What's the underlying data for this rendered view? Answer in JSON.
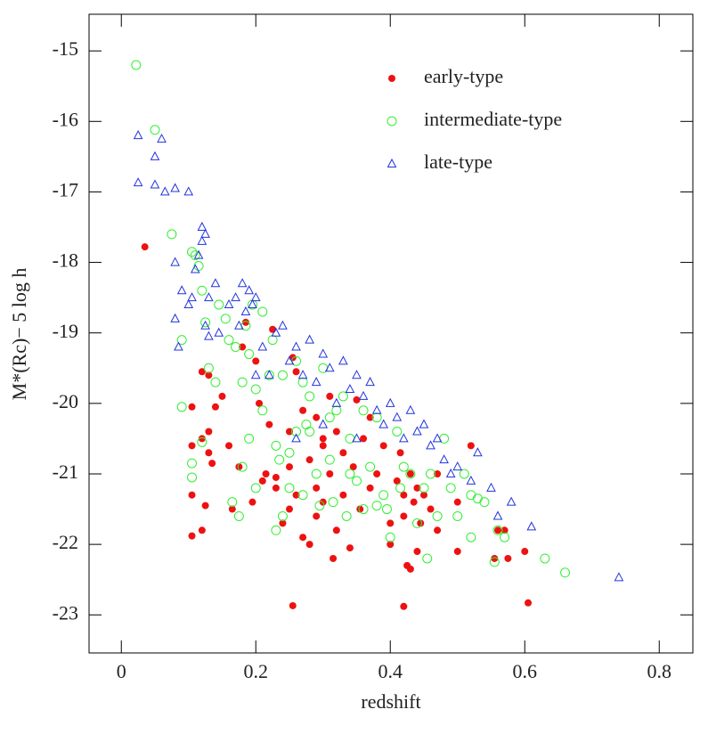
{
  "chart_data": {
    "type": "scatter",
    "x_label": "redshift",
    "y_label": "M*(Rc)− 5 log h",
    "xlim": [
      -0.048,
      0.85
    ],
    "ylim": [
      -23.54,
      -14.48
    ],
    "xticks": [
      0,
      0.2,
      0.4,
      0.6,
      0.8
    ],
    "yticks": [
      -15,
      -16,
      -17,
      -18,
      -19,
      -20,
      -21,
      -22,
      -23
    ],
    "legend": "upper right",
    "series": [
      {
        "name": "early-type",
        "color": "#ee1111",
        "marker": "filled-circle",
        "x": [
          0.035,
          0.255,
          0.42,
          0.605,
          0.105,
          0.12,
          0.105,
          0.105,
          0.12,
          0.13,
          0.13,
          0.135,
          0.12,
          0.13,
          0.14,
          0.125,
          0.105,
          0.15,
          0.16,
          0.165,
          0.175,
          0.18,
          0.185,
          0.2,
          0.22,
          0.225,
          0.23,
          0.23,
          0.24,
          0.25,
          0.25,
          0.255,
          0.26,
          0.27,
          0.27,
          0.28,
          0.28,
          0.29,
          0.29,
          0.3,
          0.3,
          0.31,
          0.31,
          0.315,
          0.32,
          0.32,
          0.33,
          0.33,
          0.34,
          0.345,
          0.35,
          0.355,
          0.36,
          0.37,
          0.37,
          0.38,
          0.39,
          0.4,
          0.4,
          0.41,
          0.415,
          0.42,
          0.42,
          0.425,
          0.43,
          0.43,
          0.435,
          0.44,
          0.44,
          0.445,
          0.45,
          0.46,
          0.47,
          0.47,
          0.5,
          0.5,
          0.52,
          0.555,
          0.56,
          0.57,
          0.575,
          0.6,
          0.195,
          0.205,
          0.21,
          0.215,
          0.25,
          0.26,
          0.29,
          0.3
        ],
        "y": [
          -17.78,
          -22.87,
          -22.88,
          -22.83,
          -21.88,
          -21.8,
          -21.3,
          -20.6,
          -20.5,
          -20.4,
          -20.7,
          -20.85,
          -19.55,
          -19.6,
          -20.05,
          -21.45,
          -20.05,
          -19.9,
          -20.6,
          -21.5,
          -20.9,
          -19.2,
          -18.85,
          -19.4,
          -20.3,
          -18.95,
          -21.2,
          -21.05,
          -21.7,
          -21.5,
          -20.4,
          -19.35,
          -19.55,
          -20.1,
          -21.9,
          -22.0,
          -20.8,
          -21.2,
          -21.6,
          -20.6,
          -21.4,
          -19.9,
          -21.0,
          -22.2,
          -20.4,
          -21.8,
          -21.3,
          -20.7,
          -22.05,
          -20.9,
          -19.95,
          -21.5,
          -20.5,
          -21.2,
          -20.2,
          -21.0,
          -20.6,
          -21.7,
          -22.0,
          -21.1,
          -20.7,
          -21.3,
          -21.6,
          -22.3,
          -22.35,
          -21.0,
          -21.4,
          -21.2,
          -22.1,
          -21.7,
          -21.3,
          -21.5,
          -21.0,
          -21.8,
          -22.1,
          -21.4,
          -20.6,
          -22.2,
          -21.8,
          -21.8,
          -22.2,
          -22.1,
          -21.4,
          -20.0,
          -21.1,
          -21.0,
          -20.9,
          -21.3,
          -20.2,
          -20.5
        ]
      },
      {
        "name": "intermediate-type",
        "color": "#33ee33",
        "marker": "open-circle",
        "x": [
          0.022,
          0.05,
          0.075,
          0.09,
          0.09,
          0.105,
          0.105,
          0.105,
          0.11,
          0.115,
          0.12,
          0.12,
          0.125,
          0.13,
          0.14,
          0.145,
          0.155,
          0.16,
          0.165,
          0.17,
          0.175,
          0.18,
          0.18,
          0.185,
          0.19,
          0.19,
          0.195,
          0.2,
          0.2,
          0.21,
          0.21,
          0.22,
          0.225,
          0.23,
          0.23,
          0.235,
          0.24,
          0.25,
          0.25,
          0.26,
          0.26,
          0.27,
          0.27,
          0.28,
          0.28,
          0.29,
          0.295,
          0.3,
          0.31,
          0.315,
          0.32,
          0.33,
          0.335,
          0.34,
          0.35,
          0.36,
          0.36,
          0.37,
          0.38,
          0.39,
          0.395,
          0.4,
          0.41,
          0.415,
          0.42,
          0.43,
          0.44,
          0.45,
          0.455,
          0.46,
          0.47,
          0.48,
          0.49,
          0.5,
          0.51,
          0.52,
          0.52,
          0.53,
          0.54,
          0.555,
          0.56,
          0.57,
          0.63,
          0.66,
          0.275,
          0.31,
          0.34,
          0.38,
          0.24
        ],
        "y": [
          -15.2,
          -16.12,
          -17.6,
          -20.05,
          -19.1,
          -20.85,
          -21.05,
          -17.85,
          -17.9,
          -18.05,
          -20.55,
          -18.4,
          -18.85,
          -19.5,
          -19.7,
          -18.6,
          -18.8,
          -19.1,
          -21.4,
          -19.2,
          -21.6,
          -20.9,
          -19.7,
          -18.9,
          -20.5,
          -19.3,
          -18.6,
          -21.2,
          -19.8,
          -20.1,
          -18.7,
          -19.6,
          -19.1,
          -21.8,
          -20.6,
          -20.8,
          -19.6,
          -21.2,
          -20.7,
          -19.4,
          -20.4,
          -21.3,
          -19.7,
          -19.9,
          -20.4,
          -21.0,
          -21.45,
          -19.5,
          -20.8,
          -21.4,
          -20.1,
          -19.9,
          -21.6,
          -20.5,
          -21.1,
          -20.1,
          -21.5,
          -20.9,
          -20.2,
          -21.3,
          -21.5,
          -21.9,
          -20.4,
          -21.2,
          -20.9,
          -21.0,
          -21.7,
          -21.2,
          -22.2,
          -21.0,
          -21.6,
          -20.5,
          -21.2,
          -21.6,
          -21.0,
          -21.9,
          -21.3,
          -21.35,
          -21.4,
          -22.25,
          -21.8,
          -21.9,
          -22.2,
          -22.4,
          -20.3,
          -20.2,
          -21.0,
          -21.45,
          -21.6
        ]
      },
      {
        "name": "late-type",
        "color": "#2233dd",
        "marker": "open-triangle",
        "x": [
          0.025,
          0.025,
          0.05,
          0.05,
          0.06,
          0.065,
          0.08,
          0.1,
          0.08,
          0.08,
          0.085,
          0.09,
          0.1,
          0.105,
          0.11,
          0.115,
          0.12,
          0.12,
          0.125,
          0.125,
          0.13,
          0.13,
          0.14,
          0.145,
          0.16,
          0.17,
          0.175,
          0.18,
          0.185,
          0.19,
          0.195,
          0.2,
          0.21,
          0.22,
          0.23,
          0.24,
          0.25,
          0.26,
          0.27,
          0.28,
          0.29,
          0.3,
          0.31,
          0.32,
          0.33,
          0.34,
          0.35,
          0.36,
          0.37,
          0.38,
          0.39,
          0.4,
          0.41,
          0.42,
          0.43,
          0.44,
          0.45,
          0.46,
          0.47,
          0.48,
          0.49,
          0.5,
          0.52,
          0.53,
          0.55,
          0.56,
          0.58,
          0.61,
          0.74,
          0.26,
          0.3,
          0.2,
          0.35
        ],
        "y": [
          -16.2,
          -16.87,
          -16.5,
          -16.9,
          -16.25,
          -17.0,
          -16.95,
          -17.0,
          -18.0,
          -18.8,
          -19.2,
          -18.4,
          -18.6,
          -18.5,
          -18.1,
          -17.9,
          -17.5,
          -17.7,
          -17.6,
          -18.9,
          -18.5,
          -19.05,
          -18.3,
          -19.0,
          -18.6,
          -18.5,
          -18.9,
          -18.3,
          -18.7,
          -18.4,
          -18.6,
          -18.5,
          -19.2,
          -19.6,
          -19.0,
          -18.9,
          -19.4,
          -19.2,
          -19.6,
          -19.1,
          -19.7,
          -19.3,
          -19.5,
          -20.0,
          -19.4,
          -19.8,
          -19.6,
          -19.9,
          -19.7,
          -20.1,
          -20.3,
          -20.0,
          -20.2,
          -20.5,
          -20.1,
          -20.4,
          -20.3,
          -20.6,
          -20.5,
          -20.8,
          -21.0,
          -20.9,
          -21.1,
          -20.7,
          -21.2,
          -21.6,
          -21.4,
          -21.75,
          -22.47,
          -20.5,
          -20.3,
          -19.6,
          -20.5
        ]
      }
    ]
  }
}
